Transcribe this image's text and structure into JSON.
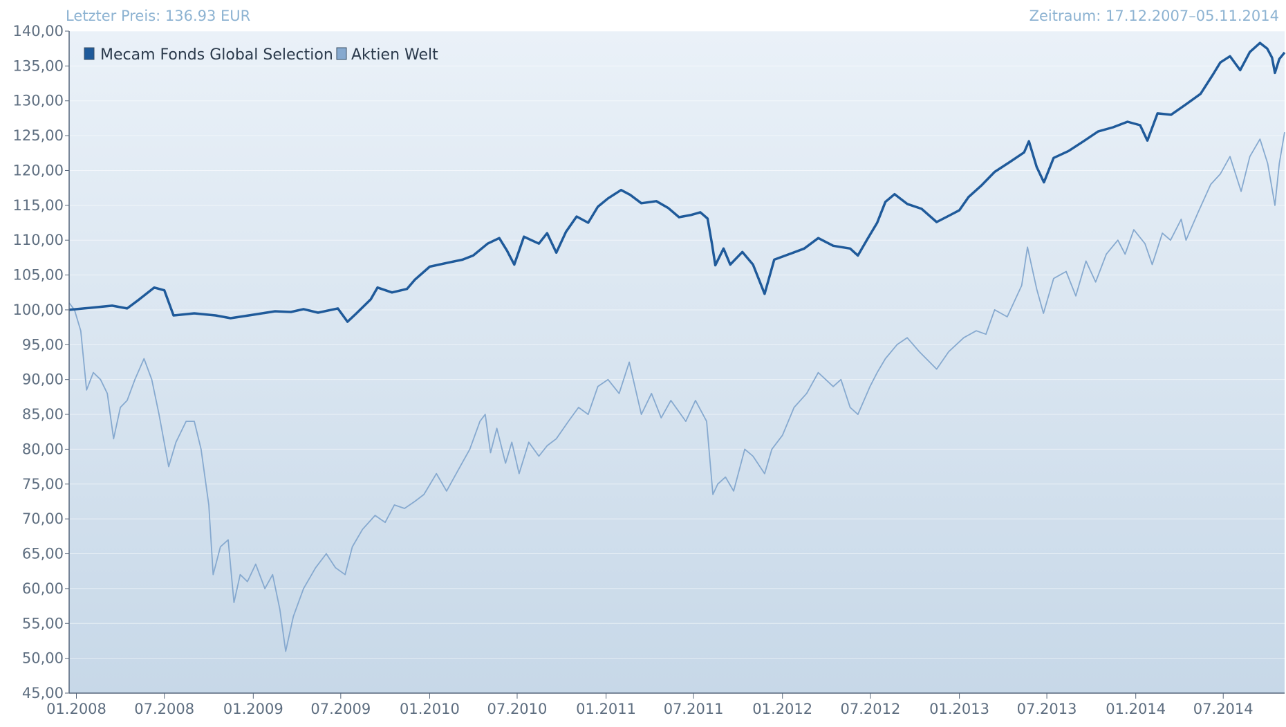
{
  "header": {
    "last_price": "Letzter Preis: 136.93 EUR",
    "period": "Zeitraum: 17.12.2007–05.11.2014"
  },
  "colors": {
    "fund": "#1f5a9a",
    "index": "#86a9cf",
    "bg_top": "#eaf1f8",
    "bg_bottom": "#c7d8e8",
    "axis": "#55657a"
  },
  "chart_data": {
    "type": "line",
    "ylim": [
      45,
      140
    ],
    "y_ticks": [
      "45,00",
      "50,00",
      "55,00",
      "60,00",
      "65,00",
      "70,00",
      "75,00",
      "80,00",
      "85,00",
      "90,00",
      "95,00",
      "100,00",
      "105,00",
      "110,00",
      "115,00",
      "120,00",
      "125,00",
      "130,00",
      "135,00",
      "140,00"
    ],
    "x_ticks": [
      "01.2008",
      "07.2008",
      "01.2009",
      "07.2009",
      "01.2010",
      "07.2010",
      "01.2011",
      "07.2011",
      "01.2012",
      "07.2012",
      "01.2013",
      "07.2013",
      "01.2014",
      "07.2014"
    ],
    "x_range": [
      "2007-12-17",
      "2014-11-05"
    ],
    "legend_position": "top-left",
    "series": [
      {
        "name": "Mecam Fonds Global Selection",
        "role": "fund",
        "points": [
          [
            "2007-12-17",
            100
          ],
          [
            "2008-02-01",
            100.3
          ],
          [
            "2008-03-15",
            100.6
          ],
          [
            "2008-04-15",
            100.2
          ],
          [
            "2008-05-10",
            101.5
          ],
          [
            "2008-06-10",
            103.2
          ],
          [
            "2008-07-01",
            102.8
          ],
          [
            "2008-07-20",
            99.2
          ],
          [
            "2008-09-01",
            99.5
          ],
          [
            "2008-10-15",
            99.2
          ],
          [
            "2008-11-15",
            98.8
          ],
          [
            "2009-01-01",
            99.3
          ],
          [
            "2009-02-15",
            99.8
          ],
          [
            "2009-03-20",
            99.7
          ],
          [
            "2009-04-15",
            100.1
          ],
          [
            "2009-05-15",
            99.6
          ],
          [
            "2009-06-25",
            100.2
          ],
          [
            "2009-07-15",
            98.3
          ],
          [
            "2009-08-01",
            99.4
          ],
          [
            "2009-09-01",
            101.5
          ],
          [
            "2009-09-15",
            103.2
          ],
          [
            "2009-10-15",
            102.5
          ],
          [
            "2009-11-15",
            103.0
          ],
          [
            "2009-12-01",
            104.3
          ],
          [
            "2010-01-01",
            106.2
          ],
          [
            "2010-02-10",
            106.8
          ],
          [
            "2010-03-10",
            107.2
          ],
          [
            "2010-04-01",
            107.8
          ],
          [
            "2010-05-01",
            109.5
          ],
          [
            "2010-05-25",
            110.3
          ],
          [
            "2010-06-10",
            108.5
          ],
          [
            "2010-06-25",
            106.5
          ],
          [
            "2010-07-15",
            110.5
          ],
          [
            "2010-08-15",
            109.5
          ],
          [
            "2010-09-01",
            111.0
          ],
          [
            "2010-09-20",
            108.2
          ],
          [
            "2010-10-10",
            111.2
          ],
          [
            "2010-11-01",
            113.4
          ],
          [
            "2010-11-25",
            112.5
          ],
          [
            "2010-12-15",
            114.8
          ],
          [
            "2011-01-05",
            116.0
          ],
          [
            "2011-02-01",
            117.2
          ],
          [
            "2011-02-20",
            116.5
          ],
          [
            "2011-03-15",
            115.3
          ],
          [
            "2011-04-15",
            115.6
          ],
          [
            "2011-05-10",
            114.6
          ],
          [
            "2011-06-01",
            113.3
          ],
          [
            "2011-06-25",
            113.6
          ],
          [
            "2011-07-15",
            114.0
          ],
          [
            "2011-07-30",
            113.1
          ],
          [
            "2011-08-08",
            109.5
          ],
          [
            "2011-08-15",
            106.4
          ],
          [
            "2011-09-01",
            108.8
          ],
          [
            "2011-09-15",
            106.5
          ],
          [
            "2011-10-10",
            108.3
          ],
          [
            "2011-11-01",
            106.5
          ],
          [
            "2011-11-25",
            102.3
          ],
          [
            "2011-12-15",
            107.2
          ],
          [
            "2012-01-15",
            108.0
          ],
          [
            "2012-02-15",
            108.8
          ],
          [
            "2012-03-15",
            110.3
          ],
          [
            "2012-04-15",
            109.2
          ],
          [
            "2012-05-20",
            108.8
          ],
          [
            "2012-06-05",
            107.8
          ],
          [
            "2012-06-25",
            110.2
          ],
          [
            "2012-07-15",
            112.5
          ],
          [
            "2012-08-01",
            115.5
          ],
          [
            "2012-08-20",
            116.6
          ],
          [
            "2012-09-15",
            115.2
          ],
          [
            "2012-10-15",
            114.5
          ],
          [
            "2012-11-15",
            112.6
          ],
          [
            "2012-12-10",
            113.5
          ],
          [
            "2013-01-01",
            114.3
          ],
          [
            "2013-01-20",
            116.2
          ],
          [
            "2013-02-15",
            117.8
          ],
          [
            "2013-03-15",
            119.8
          ],
          [
            "2013-04-15",
            121.2
          ],
          [
            "2013-05-15",
            122.6
          ],
          [
            "2013-05-25",
            124.2
          ],
          [
            "2013-06-10",
            120.5
          ],
          [
            "2013-06-25",
            118.3
          ],
          [
            "2013-07-15",
            121.8
          ],
          [
            "2013-08-15",
            122.8
          ],
          [
            "2013-09-15",
            124.2
          ],
          [
            "2013-10-15",
            125.6
          ],
          [
            "2013-11-15",
            126.2
          ],
          [
            "2013-12-15",
            127.0
          ],
          [
            "2014-01-10",
            126.5
          ],
          [
            "2014-01-25",
            124.3
          ],
          [
            "2014-02-15",
            128.2
          ],
          [
            "2014-03-15",
            128.0
          ],
          [
            "2014-04-15",
            129.5
          ],
          [
            "2014-05-15",
            131.0
          ],
          [
            "2014-06-10",
            133.8
          ],
          [
            "2014-06-25",
            135.5
          ],
          [
            "2014-07-15",
            136.4
          ],
          [
            "2014-08-05",
            134.4
          ],
          [
            "2014-08-25",
            137.0
          ],
          [
            "2014-09-15",
            138.3
          ],
          [
            "2014-09-30",
            137.5
          ],
          [
            "2014-10-10",
            136.2
          ],
          [
            "2014-10-16",
            134.0
          ],
          [
            "2014-10-25",
            136.0
          ],
          [
            "2014-11-05",
            136.93
          ]
        ]
      },
      {
        "name": "Aktien Welt",
        "role": "index",
        "points": [
          [
            "2007-12-17",
            101
          ],
          [
            "2007-12-28",
            100
          ],
          [
            "2008-01-10",
            97
          ],
          [
            "2008-01-22",
            88.5
          ],
          [
            "2008-02-05",
            91
          ],
          [
            "2008-02-20",
            90
          ],
          [
            "2008-03-05",
            88
          ],
          [
            "2008-03-18",
            81.5
          ],
          [
            "2008-04-01",
            86
          ],
          [
            "2008-04-15",
            87
          ],
          [
            "2008-05-01",
            90
          ],
          [
            "2008-05-20",
            93
          ],
          [
            "2008-06-05",
            90
          ],
          [
            "2008-06-20",
            85
          ],
          [
            "2008-07-10",
            77.5
          ],
          [
            "2008-07-25",
            81
          ],
          [
            "2008-08-15",
            84
          ],
          [
            "2008-09-01",
            84
          ],
          [
            "2008-09-15",
            80
          ],
          [
            "2008-10-01",
            72
          ],
          [
            "2008-10-10",
            62
          ],
          [
            "2008-10-25",
            66
          ],
          [
            "2008-11-10",
            67
          ],
          [
            "2008-11-22",
            58
          ],
          [
            "2008-12-05",
            62
          ],
          [
            "2008-12-20",
            61
          ],
          [
            "2009-01-06",
            63.5
          ],
          [
            "2009-01-25",
            60
          ],
          [
            "2009-02-10",
            62
          ],
          [
            "2009-02-25",
            57
          ],
          [
            "2009-03-09",
            51
          ],
          [
            "2009-03-25",
            56
          ],
          [
            "2009-04-15",
            60
          ],
          [
            "2009-05-10",
            63
          ],
          [
            "2009-06-01",
            65
          ],
          [
            "2009-06-20",
            63
          ],
          [
            "2009-07-10",
            62
          ],
          [
            "2009-07-25",
            66
          ],
          [
            "2009-08-15",
            68.5
          ],
          [
            "2009-09-10",
            70.5
          ],
          [
            "2009-10-01",
            69.5
          ],
          [
            "2009-10-20",
            72
          ],
          [
            "2009-11-10",
            71.5
          ],
          [
            "2009-12-01",
            72.5
          ],
          [
            "2009-12-20",
            73.5
          ],
          [
            "2010-01-15",
            76.5
          ],
          [
            "2010-02-05",
            74
          ],
          [
            "2010-03-01",
            77
          ],
          [
            "2010-03-25",
            80
          ],
          [
            "2010-04-15",
            84
          ],
          [
            "2010-04-26",
            85
          ],
          [
            "2010-05-07",
            79.5
          ],
          [
            "2010-05-20",
            83
          ],
          [
            "2010-06-07",
            78
          ],
          [
            "2010-06-20",
            81
          ],
          [
            "2010-07-05",
            76.5
          ],
          [
            "2010-07-25",
            81
          ],
          [
            "2010-08-15",
            79
          ],
          [
            "2010-09-01",
            80.5
          ],
          [
            "2010-09-20",
            81.5
          ],
          [
            "2010-10-15",
            84
          ],
          [
            "2010-11-05",
            86
          ],
          [
            "2010-11-25",
            85
          ],
          [
            "2010-12-15",
            89
          ],
          [
            "2011-01-05",
            90
          ],
          [
            "2011-01-28",
            88
          ],
          [
            "2011-02-18",
            92.5
          ],
          [
            "2011-03-15",
            85
          ],
          [
            "2011-04-05",
            88
          ],
          [
            "2011-04-25",
            84.5
          ],
          [
            "2011-05-15",
            87
          ],
          [
            "2011-06-15",
            84
          ],
          [
            "2011-07-05",
            87
          ],
          [
            "2011-07-28",
            84
          ],
          [
            "2011-08-10",
            73.5
          ],
          [
            "2011-08-20",
            75
          ],
          [
            "2011-09-05",
            76
          ],
          [
            "2011-09-22",
            74
          ],
          [
            "2011-10-15",
            80
          ],
          [
            "2011-11-01",
            79
          ],
          [
            "2011-11-25",
            76.5
          ],
          [
            "2011-12-10",
            80
          ],
          [
            "2012-01-01",
            82
          ],
          [
            "2012-01-25",
            86
          ],
          [
            "2012-02-20",
            88
          ],
          [
            "2012-03-15",
            91
          ],
          [
            "2012-04-15",
            89
          ],
          [
            "2012-05-01",
            90
          ],
          [
            "2012-05-20",
            86
          ],
          [
            "2012-06-05",
            85
          ],
          [
            "2012-06-30",
            89
          ],
          [
            "2012-07-15",
            91
          ],
          [
            "2012-08-01",
            93
          ],
          [
            "2012-08-25",
            95
          ],
          [
            "2012-09-15",
            96
          ],
          [
            "2012-10-10",
            94
          ],
          [
            "2012-11-15",
            91.5
          ],
          [
            "2012-12-10",
            94
          ],
          [
            "2013-01-10",
            96
          ],
          [
            "2013-02-05",
            97
          ],
          [
            "2013-02-25",
            96.5
          ],
          [
            "2013-03-15",
            100
          ],
          [
            "2013-04-10",
            99
          ],
          [
            "2013-05-10",
            103.5
          ],
          [
            "2013-05-22",
            109
          ],
          [
            "2013-06-10",
            103
          ],
          [
            "2013-06-24",
            99.5
          ],
          [
            "2013-07-15",
            104.5
          ],
          [
            "2013-08-10",
            105.5
          ],
          [
            "2013-08-30",
            102
          ],
          [
            "2013-09-20",
            107
          ],
          [
            "2013-10-10",
            104
          ],
          [
            "2013-11-01",
            108
          ],
          [
            "2013-11-25",
            110
          ],
          [
            "2013-12-10",
            108
          ],
          [
            "2013-12-28",
            111.5
          ],
          [
            "2014-01-20",
            109.5
          ],
          [
            "2014-02-04",
            106.5
          ],
          [
            "2014-02-25",
            111
          ],
          [
            "2014-03-14",
            110
          ],
          [
            "2014-04-05",
            113
          ],
          [
            "2014-04-15",
            110
          ],
          [
            "2014-05-10",
            114
          ],
          [
            "2014-06-05",
            118
          ],
          [
            "2014-06-25",
            119.5
          ],
          [
            "2014-07-15",
            122
          ],
          [
            "2014-08-07",
            117
          ],
          [
            "2014-08-25",
            122
          ],
          [
            "2014-09-15",
            124.5
          ],
          [
            "2014-10-01",
            121
          ],
          [
            "2014-10-16",
            115
          ],
          [
            "2014-10-25",
            121
          ],
          [
            "2014-11-05",
            125.5
          ]
        ]
      }
    ]
  }
}
